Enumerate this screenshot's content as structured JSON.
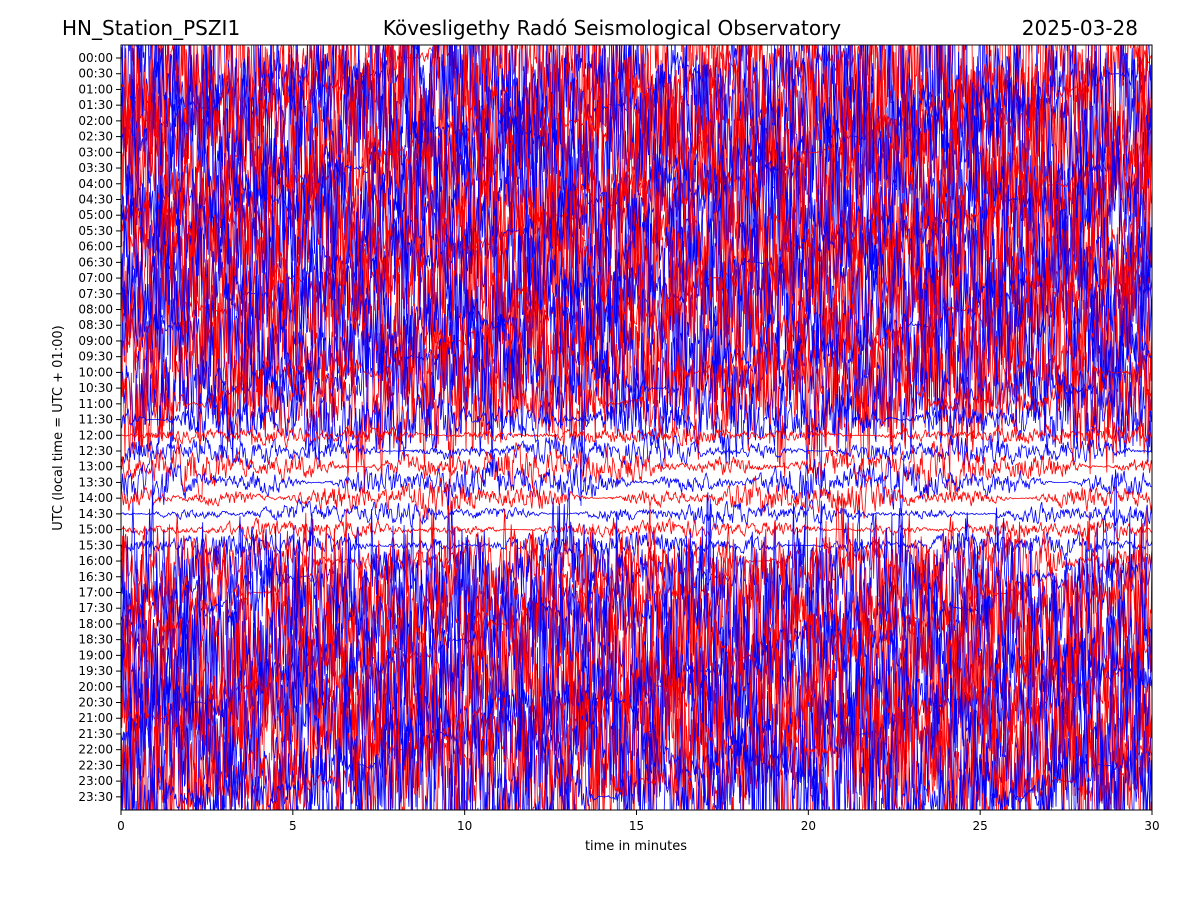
{
  "header": {
    "station": "HN_Station_PSZI1",
    "observatory": "Kövesligethy Radó Seismological Observatory",
    "date": "2025-03-28"
  },
  "chart_data": {
    "type": "line",
    "subtype": "helicorder",
    "xlabel": "time in minutes",
    "ylabel": "UTC (local time = UTC + 01:00)",
    "xlim": [
      0,
      30
    ],
    "x_ticks": [
      0,
      5,
      10,
      15,
      20,
      25,
      30
    ],
    "y_ticks": [
      "00:00",
      "00:30",
      "01:00",
      "01:30",
      "02:00",
      "02:30",
      "03:00",
      "03:30",
      "04:00",
      "04:30",
      "05:00",
      "05:30",
      "06:00",
      "06:30",
      "07:00",
      "07:30",
      "08:00",
      "08:30",
      "09:00",
      "09:30",
      "10:00",
      "10:30",
      "11:00",
      "11:30",
      "12:00",
      "12:30",
      "13:00",
      "13:30",
      "14:00",
      "14:30",
      "15:00",
      "15:30",
      "16:00",
      "16:30",
      "17:00",
      "17:30",
      "18:00",
      "18:30",
      "19:00",
      "19:30",
      "20:00",
      "20:30",
      "21:00",
      "21:30",
      "22:00",
      "22:30",
      "23:00",
      "23:30"
    ],
    "trace_colors": [
      "#ff0000",
      "#0000ff"
    ],
    "grid": false,
    "legend": "none"
  }
}
